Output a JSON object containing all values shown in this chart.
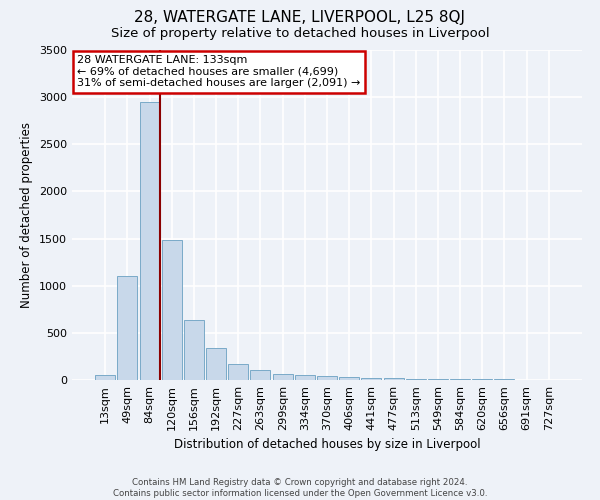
{
  "title1": "28, WATERGATE LANE, LIVERPOOL, L25 8QJ",
  "title2": "Size of property relative to detached houses in Liverpool",
  "xlabel": "Distribution of detached houses by size in Liverpool",
  "ylabel": "Number of detached properties",
  "annotation_line1": "28 WATERGATE LANE: 133sqm",
  "annotation_line2": "← 69% of detached houses are smaller (4,699)",
  "annotation_line3": "31% of semi-detached houses are larger (2,091) →",
  "footnote1": "Contains HM Land Registry data © Crown copyright and database right 2024.",
  "footnote2": "Contains public sector information licensed under the Open Government Licence v3.0.",
  "bar_labels": [
    "13sqm",
    "49sqm",
    "84sqm",
    "120sqm",
    "156sqm",
    "192sqm",
    "227sqm",
    "263sqm",
    "299sqm",
    "334sqm",
    "370sqm",
    "406sqm",
    "441sqm",
    "477sqm",
    "513sqm",
    "549sqm",
    "584sqm",
    "620sqm",
    "656sqm",
    "691sqm",
    "727sqm"
  ],
  "bar_values": [
    50,
    1100,
    2950,
    1480,
    640,
    340,
    175,
    105,
    65,
    55,
    45,
    35,
    25,
    20,
    15,
    12,
    10,
    8,
    6,
    5,
    4
  ],
  "bar_color": "#c8d8ea",
  "bar_edge_color": "#7aaac8",
  "marker_bar_index": 2,
  "marker_color": "#8b0000",
  "ylim": [
    0,
    3500
  ],
  "yticks": [
    0,
    500,
    1000,
    1500,
    2000,
    2500,
    3000,
    3500
  ],
  "bg_color": "#eef2f8",
  "grid_color": "#ffffff",
  "annotation_box_color": "white",
  "annotation_box_edge": "#cc0000",
  "title1_fontsize": 11,
  "title2_fontsize": 9.5
}
